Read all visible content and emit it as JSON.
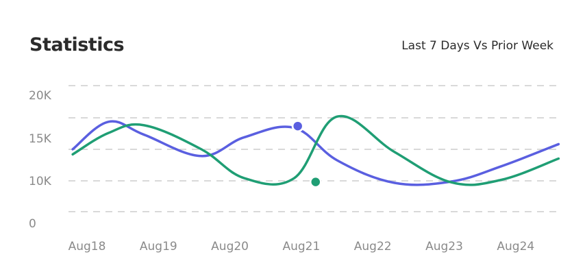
{
  "header": {
    "title": "Statistics",
    "period_label": "Last 7 Days Vs Prior Week"
  },
  "chart_data": {
    "type": "line",
    "categories": [
      "Aug18",
      "Aug19",
      "Aug20",
      "Aug21",
      "Aug22",
      "Aug23",
      "Aug24"
    ],
    "y_ticks": [
      "0",
      "10K",
      "15K",
      "20K"
    ],
    "ylim": [
      0,
      20000
    ],
    "grid": true,
    "series": [
      {
        "color": "#5a5fe0",
        "x": [
          17.8,
          18.3,
          18.8,
          19.6,
          20.2,
          20.9,
          21.5,
          22.3,
          23.1,
          23.8,
          24.6
        ],
        "values": [
          13800,
          17000,
          15500,
          13000,
          15200,
          16300,
          12500,
          9700,
          10000,
          11800,
          14400
        ],
        "highlight": {
          "x": 20.95,
          "value": 16500
        }
      },
      {
        "color": "#1f9e74",
        "x": [
          17.8,
          18.3,
          18.8,
          19.6,
          20.2,
          20.9,
          21.5,
          22.3,
          23.1,
          23.8,
          24.6
        ],
        "values": [
          13200,
          15700,
          16600,
          13800,
          10400,
          10400,
          17600,
          13500,
          9800,
          10200,
          12700
        ],
        "highlight": {
          "x": 21.2,
          "value": 9900
        }
      }
    ]
  }
}
